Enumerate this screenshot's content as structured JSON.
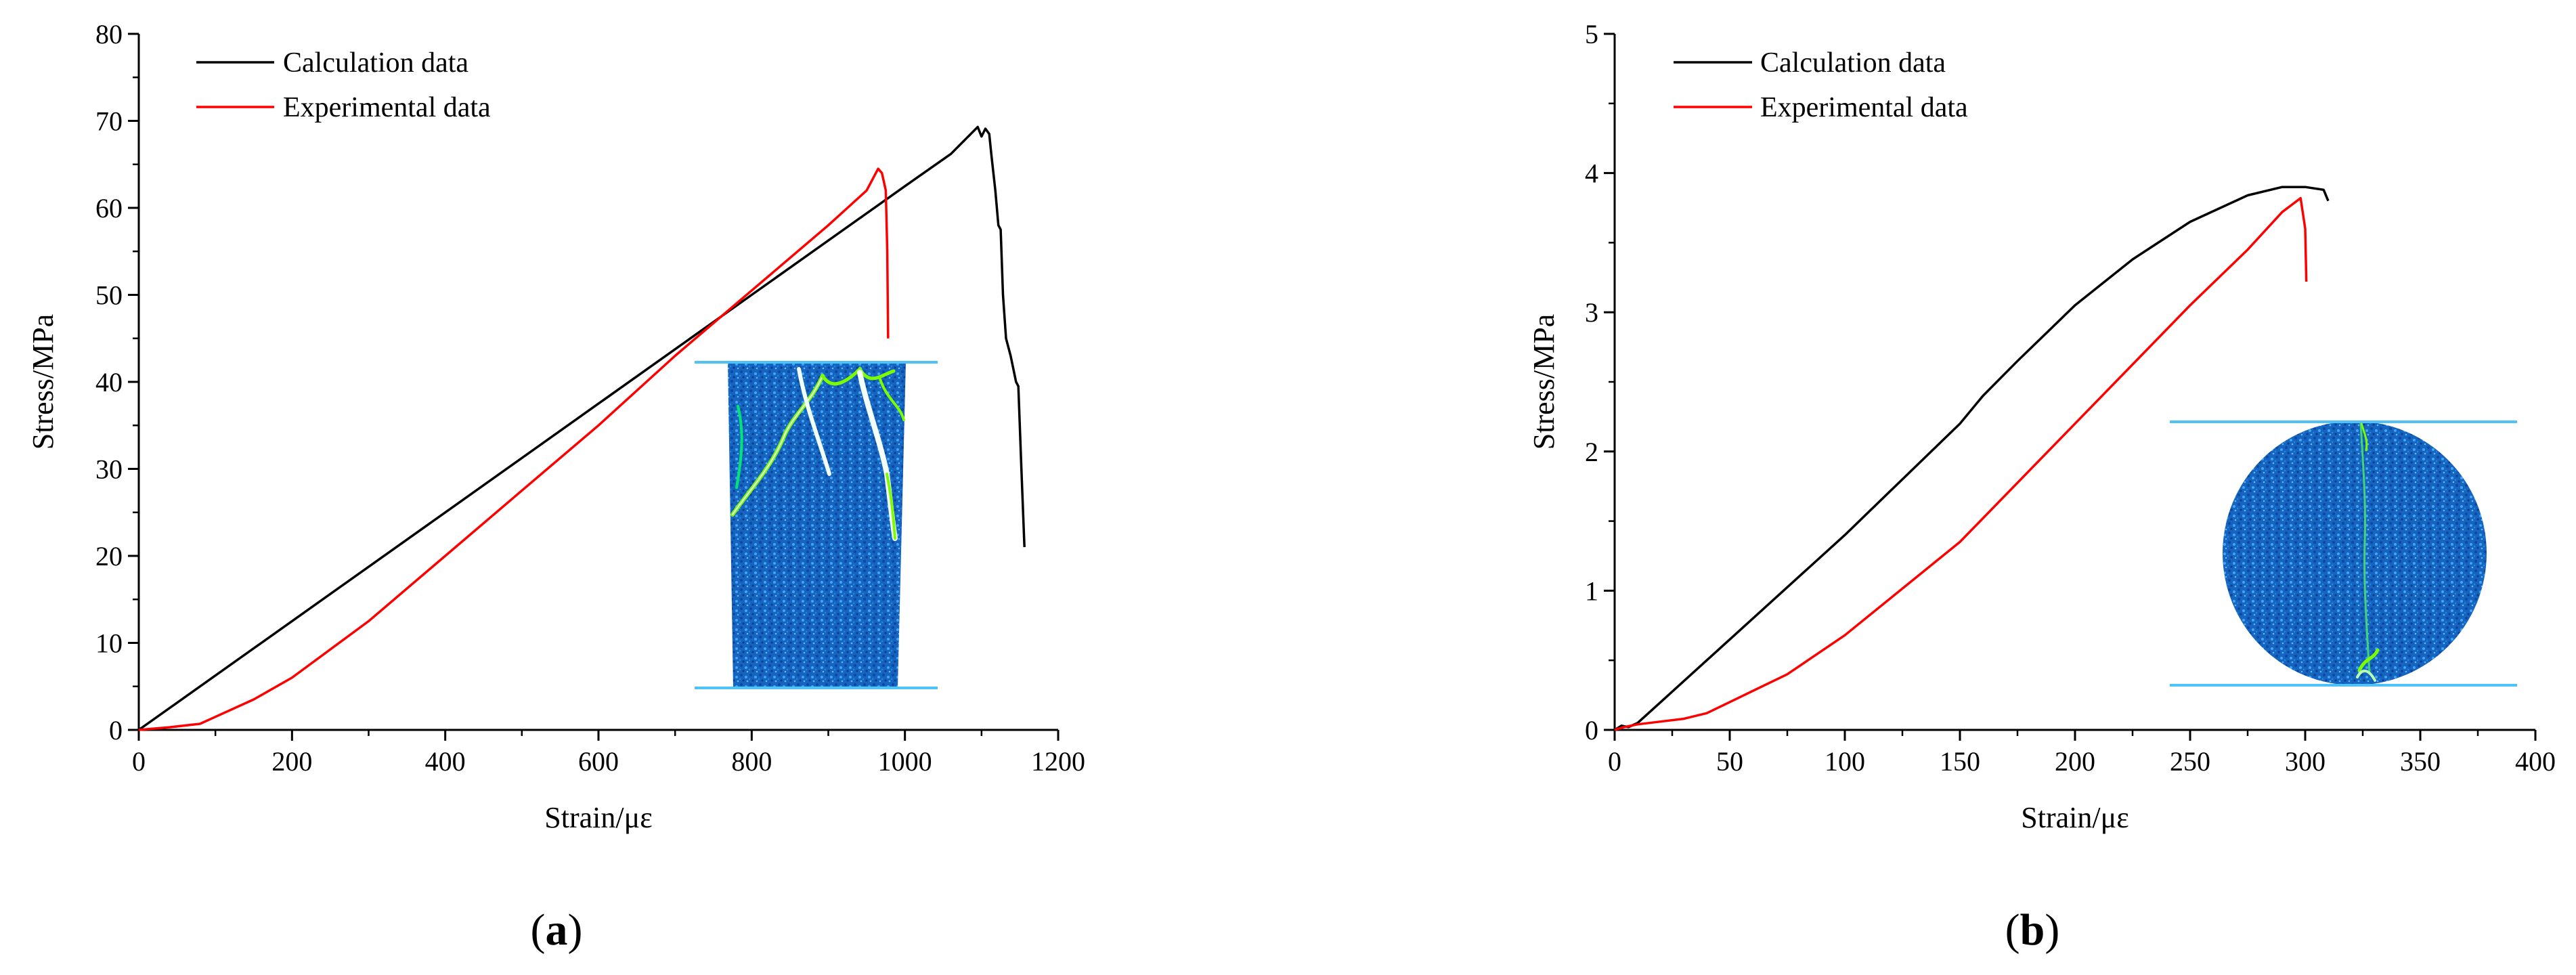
{
  "colors": {
    "calculation": "#000000",
    "experimental": "#ff0000",
    "platen": "#4fc3f7",
    "specimen": "#1565c0",
    "crack": "#7CFC00"
  },
  "panels": [
    {
      "label_letter": "a",
      "label_open": "(",
      "label_close": ")"
    },
    {
      "label_letter": "b",
      "label_open": "(",
      "label_close": ")"
    }
  ],
  "chart_data": [
    {
      "type": "line",
      "xlabel": "Strain/με",
      "ylabel": "Stress/MPa",
      "xlim": [
        0,
        1200
      ],
      "ylim": [
        0,
        80
      ],
      "xticks": [
        0,
        200,
        400,
        600,
        800,
        1000,
        1200
      ],
      "yticks": [
        0,
        10,
        20,
        30,
        40,
        50,
        60,
        70,
        80
      ],
      "grid": false,
      "legend_position": "top-left",
      "inset": "prismatic specimen after failure",
      "series": [
        {
          "name": "Calculation data",
          "color": "#000000",
          "points": [
            [
              0,
              0
            ],
            [
              200,
              12.5
            ],
            [
              400,
              25
            ],
            [
              600,
              37.5
            ],
            [
              800,
              50
            ],
            [
              1000,
              62.5
            ],
            [
              1060,
              66.2
            ],
            [
              1095,
              69.3
            ],
            [
              1100,
              68.2
            ],
            [
              1105,
              69.1
            ],
            [
              1110,
              68.5
            ],
            [
              1113,
              66
            ],
            [
              1118,
              62
            ],
            [
              1122,
              58
            ],
            [
              1125,
              57.5
            ],
            [
              1128,
              50
            ],
            [
              1132,
              45
            ],
            [
              1138,
              43
            ],
            [
              1145,
              40
            ],
            [
              1148,
              39.5
            ],
            [
              1152,
              30
            ],
            [
              1156,
              21
            ]
          ]
        },
        {
          "name": "Experimental data",
          "color": "#ff0000",
          "points": [
            [
              0,
              0
            ],
            [
              40,
              0.3
            ],
            [
              80,
              0.7
            ],
            [
              100,
              1.5
            ],
            [
              150,
              3.5
            ],
            [
              200,
              6
            ],
            [
              300,
              12.5
            ],
            [
              400,
              20
            ],
            [
              500,
              27.5
            ],
            [
              600,
              35
            ],
            [
              700,
              43
            ],
            [
              800,
              50.5
            ],
            [
              900,
              58
            ],
            [
              950,
              62
            ],
            [
              965,
              64.5
            ],
            [
              970,
              64
            ],
            [
              975,
              62
            ],
            [
              977,
              55
            ],
            [
              978,
              45
            ]
          ]
        }
      ]
    },
    {
      "type": "line",
      "xlabel": "Strain/με",
      "ylabel": "Stress/MPa",
      "xlim": [
        0,
        400
      ],
      "ylim": [
        0,
        5
      ],
      "xticks": [
        0,
        50,
        100,
        150,
        200,
        250,
        300,
        350,
        400
      ],
      "yticks": [
        0,
        1,
        2,
        3,
        4,
        5
      ],
      "grid": false,
      "legend_position": "top-left",
      "inset": "disc specimen after splitting",
      "series": [
        {
          "name": "Calculation data",
          "color": "#000000",
          "points": [
            [
              0,
              0
            ],
            [
              3,
              0.03
            ],
            [
              6,
              0.02
            ],
            [
              10,
              0.05
            ],
            [
              20,
              0.2
            ],
            [
              50,
              0.65
            ],
            [
              100,
              1.4
            ],
            [
              150,
              2.2
            ],
            [
              160,
              2.4
            ],
            [
              175,
              2.65
            ],
            [
              200,
              3.05
            ],
            [
              225,
              3.38
            ],
            [
              250,
              3.65
            ],
            [
              275,
              3.84
            ],
            [
              290,
              3.9
            ],
            [
              300,
              3.9
            ],
            [
              308,
              3.88
            ],
            [
              310,
              3.8
            ]
          ]
        },
        {
          "name": "Experimental data",
          "color": "#ff0000",
          "points": [
            [
              0,
              0
            ],
            [
              4,
              0.02
            ],
            [
              10,
              0.04
            ],
            [
              20,
              0.06
            ],
            [
              30,
              0.08
            ],
            [
              40,
              0.12
            ],
            [
              50,
              0.2
            ],
            [
              75,
              0.4
            ],
            [
              100,
              0.68
            ],
            [
              150,
              1.35
            ],
            [
              200,
              2.2
            ],
            [
              250,
              3.05
            ],
            [
              275,
              3.45
            ],
            [
              290,
              3.72
            ],
            [
              298,
              3.82
            ],
            [
              300,
              3.6
            ],
            [
              300.5,
              3.22
            ]
          ]
        }
      ]
    }
  ]
}
